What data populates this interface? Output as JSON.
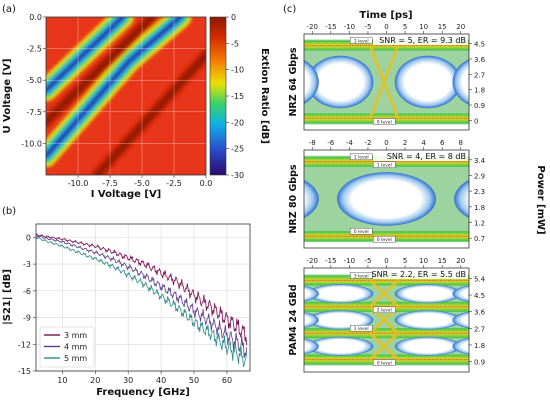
{
  "chart_data": [
    {
      "panel": "(a)",
      "type": "heatmap",
      "xlabel": "I Voltage [V]",
      "ylabel": "U Voltage [V]",
      "xlim": [
        -12.5,
        0
      ],
      "ylim": [
        -12.5,
        0
      ],
      "xticks": [
        "-10.0",
        "-7.5",
        "-5.0",
        "-2.5",
        "0.0"
      ],
      "yticks": [
        "0.0",
        "-2.5",
        "-5.0",
        "-7.5",
        "-10.0"
      ],
      "colorbar": {
        "label": "Extion Ratio [dB]",
        "range": [
          -30,
          0
        ],
        "ticks": [
          "0",
          "-5",
          "-10",
          "-15",
          "-20",
          "-25",
          "-30"
        ],
        "colors": [
          "#8B1A00",
          "#E03000",
          "#F27800",
          "#EDE000",
          "#36D36A",
          "#0FAFE8",
          "#2A4BC8",
          "#2A0A6E"
        ]
      },
      "stripes": [
        {
          "type": "minimum",
          "points": [
            [
              -12.5,
              -11.0
            ],
            [
              -6.0,
              -3.5
            ],
            [
              -2.0,
              0.0
            ]
          ]
        },
        {
          "type": "minimum",
          "points": [
            [
              -12.5,
              -5.8
            ],
            [
              -6.5,
              0.0
            ]
          ]
        },
        {
          "type": "maximum",
          "points": [
            [
              -12.5,
              -8.3
            ],
            [
              -4.2,
              0.0
            ]
          ]
        },
        {
          "type": "maximum",
          "points": [
            [
              -8.5,
              -12.5
            ],
            [
              0.0,
              -3.0
            ]
          ]
        }
      ],
      "grid": true
    },
    {
      "panel": "(b)",
      "type": "line",
      "xlabel": "Frequency [GHz]",
      "ylabel": "|S21| [dB]",
      "xlim": [
        2,
        67
      ],
      "ylim": [
        -15,
        1.5
      ],
      "xticks": [
        "10",
        "20",
        "30",
        "40",
        "50",
        "60"
      ],
      "yticks": [
        "0",
        "-3",
        "-6",
        "-9",
        "-12",
        "-15"
      ],
      "grid": true,
      "legend_position": "bottom-left",
      "series": [
        {
          "name": "3 mm",
          "color": "#7a1050",
          "x": [
            2,
            5,
            10,
            15,
            20,
            25,
            30,
            35,
            40,
            45,
            50,
            55,
            60,
            63,
            65,
            66
          ],
          "y": [
            0.3,
            0.1,
            -0.2,
            -0.6,
            -1.0,
            -1.6,
            -2.3,
            -3.0,
            -4.0,
            -5.0,
            -6.5,
            -7.8,
            -9.2,
            -10.0,
            -10.7,
            -11.0
          ]
        },
        {
          "name": "4 mm",
          "color": "#5b3d8a",
          "x": [
            2,
            5,
            10,
            15,
            20,
            25,
            30,
            35,
            40,
            45,
            50,
            55,
            60,
            63,
            65,
            66
          ],
          "y": [
            0.2,
            -0.1,
            -0.5,
            -1.1,
            -1.7,
            -2.4,
            -3.3,
            -4.3,
            -5.5,
            -6.7,
            -8.2,
            -9.5,
            -11.0,
            -11.8,
            -12.4,
            -12.8
          ]
        },
        {
          "name": "5 mm",
          "color": "#2c8a8a",
          "x": [
            2,
            5,
            10,
            15,
            20,
            25,
            30,
            35,
            40,
            45,
            50,
            55,
            60,
            63,
            65,
            66
          ],
          "y": [
            0.0,
            -0.4,
            -1.0,
            -1.7,
            -2.4,
            -3.2,
            -4.2,
            -5.3,
            -6.6,
            -7.9,
            -9.5,
            -10.8,
            -12.3,
            -13.0,
            -13.6,
            -14.0
          ]
        }
      ]
    },
    {
      "panel": "(c)",
      "type": "heatmap",
      "ylabel": "Power [mW]",
      "eyes": [
        {
          "label": "NRZ 64 Gbps",
          "time_label": "Time [ps]",
          "xticks": [
            "-20",
            "-15",
            "-10",
            "-5",
            "0",
            "5",
            "10",
            "15",
            "20"
          ],
          "yticks": [
            "4.5",
            "3.6",
            "2.7",
            "1.8",
            "0.9",
            "0"
          ],
          "annotation": "SNR = 5, ER = 9.3 dB",
          "levels": 2,
          "eyes_across": 2,
          "markers": [
            "1 level",
            "0 level"
          ]
        },
        {
          "label": "NRZ 80 Gbps",
          "xticks": [
            "-8",
            "-6",
            "-4",
            "-2",
            "0",
            "2",
            "4",
            "6",
            "8"
          ],
          "yticks": [
            "3.4",
            "2.9",
            "2.3",
            "1.8",
            "1.2",
            "0.7"
          ],
          "annotation": "SNR = 4, ER = 8 dB",
          "levels": 2,
          "eyes_across": 1,
          "markers": [
            "1 level",
            "1 level",
            "0 level",
            "0 level"
          ]
        },
        {
          "label": "PAM4 24 GBd",
          "xticks": [
            "-20",
            "-15",
            "-10",
            "-5",
            "0",
            "5",
            "10",
            "15",
            "20"
          ],
          "yticks": [
            "5.4",
            "4.5",
            "3.6",
            "2.7",
            "1.8",
            "0.9"
          ],
          "annotation": "SNR = 2.2, ER = 5.5 dB",
          "levels": 4,
          "eyes_across": 2,
          "markers": [
            "3 level",
            "2 level",
            "1 level",
            "0 level"
          ]
        }
      ]
    }
  ]
}
